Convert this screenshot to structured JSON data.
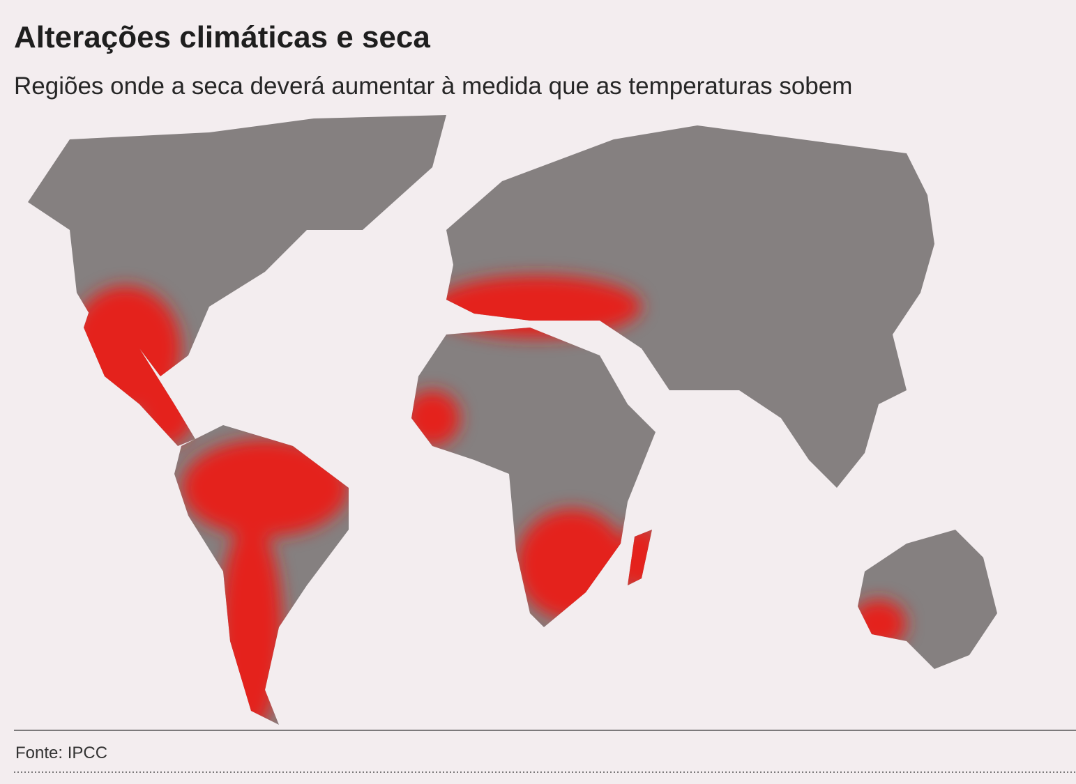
{
  "title": "Alterações climáticas e seca",
  "subtitle": "Regiões onde a seca deverá aumentar à medida que as temperaturas sobem",
  "source": "Fonte: IPCC"
}
